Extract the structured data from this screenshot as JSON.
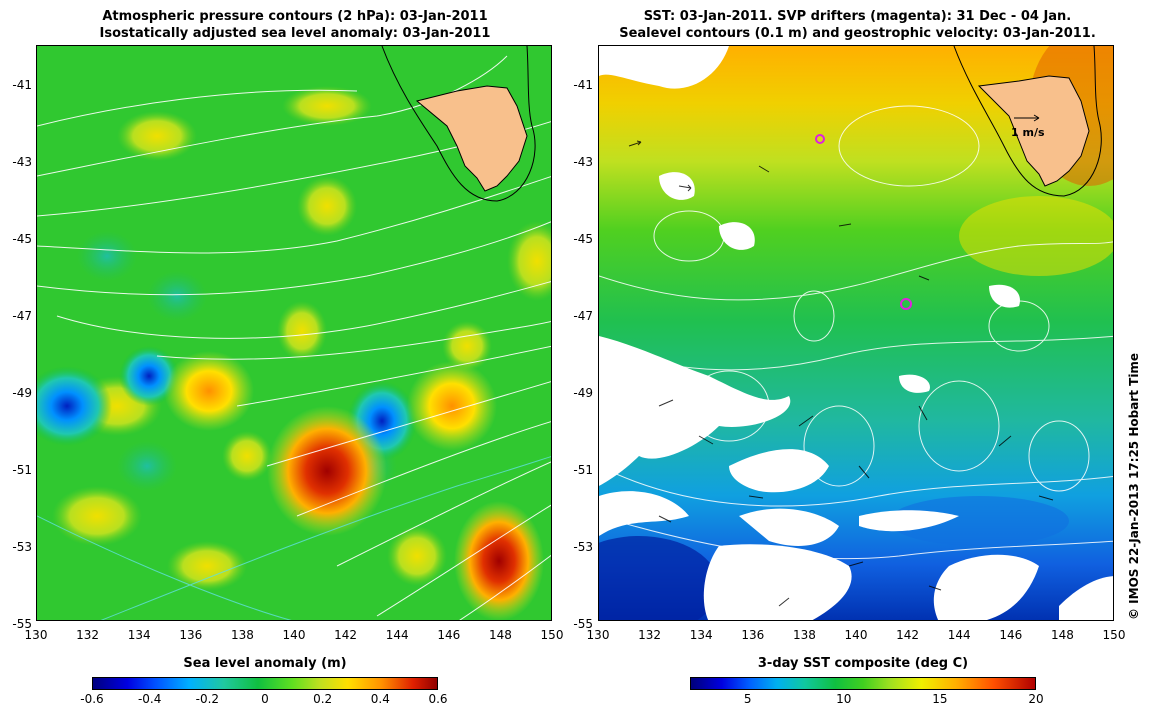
{
  "left_title_line1": "Atmospheric pressure contours (2 hPa): 03-Jan-2011",
  "left_title_line2": "Isostatically adjusted sea level anomaly: 03-Jan-2011",
  "right_title_line1": "SST: 03-Jan-2011. SVP drifters (magenta): 31 Dec - 04 Jan.",
  "right_title_line2": "Sealevel contours (0.1 m) and geostrophic velocity: 03-Jan-2011.",
  "y_ticks": [
    "-41",
    "-43",
    "-45",
    "-47",
    "-49",
    "-51",
    "-53",
    "-55"
  ],
  "x_ticks": [
    "130",
    "132",
    "134",
    "136",
    "138",
    "140",
    "142",
    "144",
    "146",
    "148",
    "150"
  ],
  "left_colorbar": {
    "title": "Sea level anomaly (m)",
    "ticks": [
      "-0.6",
      "-0.4",
      "-0.2",
      "0",
      "0.2",
      "0.4",
      "0.6"
    ]
  },
  "right_colorbar": {
    "title": "3-day SST composite (deg C)",
    "ticks": [
      "5",
      "10",
      "15",
      "20"
    ]
  },
  "velocity_scale_label": "1 m/s",
  "credit": "© IMOS 22-Jan-2013 17:25 Hobart Time",
  "colors": {
    "land": "#f8c08c",
    "drifter": "#e020e0",
    "contour": "#ffffff"
  }
}
